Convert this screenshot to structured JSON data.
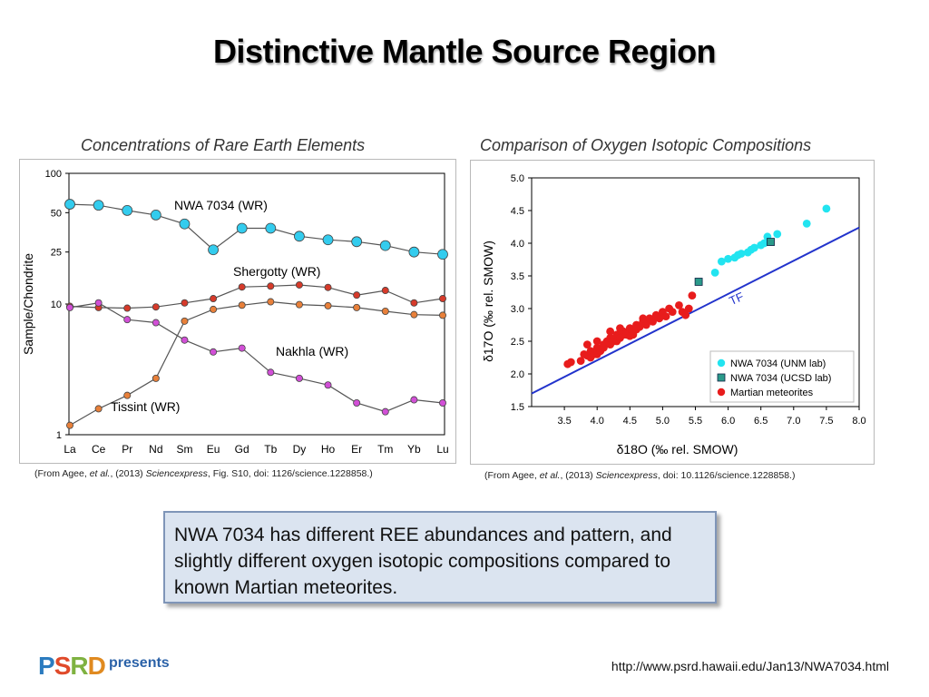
{
  "slide_title": "Distinctive Mantle Source Region",
  "left_panel": {
    "title": "Concentrations of Rare Earth Elements",
    "caption_prefix": "(From Agee, ",
    "caption_etal": "et al.",
    "caption_mid": ", (2013) ",
    "caption_journal": "Sciencexpress",
    "caption_suffix": ", Fig. S10, doi: 1126/science.1228858.)"
  },
  "right_panel": {
    "title": "Comparison of Oxygen Isotopic Compositions",
    "caption_prefix": "(From Agee, ",
    "caption_etal": "et al.",
    "caption_mid": ", (2013) ",
    "caption_journal": "Sciencexpress",
    "caption_suffix": ", doi: 10.1126/science.1228858.)"
  },
  "note_text": "NWA 7034 has different REE abundances and pattern, and slightly different oxygen isotopic compositions compared to known Martian meteorites.",
  "logo": {
    "main_p": "P",
    "main_s": "S",
    "main_r": "R",
    "main_d": "D",
    "sub": "presents"
  },
  "url": "http://www.psrd.hawaii.edu/Jan13/NWA7034.html",
  "chart_data": [
    {
      "type": "line",
      "title": "Concentrations of Rare Earth Elements",
      "ylabel": "Sample/Chondrite",
      "xlabel": "",
      "yscale": "log",
      "ylim": [
        1,
        100
      ],
      "yticks": [
        100,
        50,
        25,
        10,
        1
      ],
      "categories": [
        "La",
        "Ce",
        "Pr",
        "Nd",
        "Sm",
        "Eu",
        "Gd",
        "Tb",
        "Dy",
        "Ho",
        "Er",
        "Tm",
        "Yb",
        "Lu"
      ],
      "series": [
        {
          "name": "NWA 7034 (WR)",
          "color": "#33ccee",
          "values": [
            58,
            57,
            52,
            48,
            41,
            26,
            38,
            38,
            33,
            31,
            30,
            28,
            25,
            24
          ]
        },
        {
          "name": "Shergotty (WR)",
          "color": "#d63a2a",
          "values": [
            9.6,
            9.4,
            9.3,
            9.5,
            10.2,
            11.0,
            13.5,
            13.7,
            14.0,
            13.4,
            11.7,
            12.7,
            10.2,
            11.0
          ]
        },
        {
          "name": "Nakhla (WR)",
          "color": "#d14fd6",
          "values": [
            9.4,
            10.2,
            7.6,
            7.2,
            5.3,
            4.3,
            4.6,
            3.0,
            2.7,
            2.4,
            1.75,
            1.5,
            1.85,
            1.75
          ]
        },
        {
          "name": "Tissint (WR)",
          "color": "#e8803a",
          "values": [
            1.18,
            1.58,
            2.0,
            2.7,
            7.4,
            9.1,
            9.8,
            10.4,
            9.9,
            9.7,
            9.4,
            8.8,
            8.3,
            8.2
          ]
        }
      ]
    },
    {
      "type": "scatter",
      "title": "Comparison of Oxygen Isotopic Compositions",
      "xlabel": "δ18O (‰ rel. SMOW)",
      "ylabel": "δ17O (‰ rel. SMOW)",
      "xlim": [
        3.0,
        8.0
      ],
      "ylim": [
        1.5,
        5.0
      ],
      "xticks": [
        3.5,
        4.0,
        4.5,
        5.0,
        5.5,
        6.0,
        6.5,
        7.0,
        7.5,
        8.0
      ],
      "yticks": [
        1.5,
        2.0,
        2.5,
        3.0,
        3.5,
        4.0,
        4.5,
        5.0
      ],
      "legend_position": "bottom-right",
      "tf_line": {
        "label": "TF",
        "color": "#2233cc",
        "x": [
          3.0,
          8.0
        ],
        "y": [
          1.7,
          4.24
        ]
      },
      "series": [
        {
          "name": "NWA 7034 (UNM lab)",
          "color": "#22e4f0",
          "marker": "circle",
          "x": [
            5.8,
            5.9,
            6.0,
            6.1,
            6.15,
            6.2,
            6.3,
            6.35,
            6.4,
            6.5,
            6.55,
            6.6,
            6.75,
            7.2,
            7.5
          ],
          "y": [
            3.55,
            3.72,
            3.76,
            3.78,
            3.82,
            3.84,
            3.86,
            3.9,
            3.93,
            3.97,
            4.0,
            4.1,
            4.14,
            4.3,
            4.53
          ]
        },
        {
          "name": "NWA 7034 (UCSD lab)",
          "color": "#2a9a8a",
          "marker": "square",
          "x": [
            5.55,
            6.65
          ],
          "y": [
            3.41,
            4.02
          ]
        },
        {
          "name": "Martian meteorites",
          "color": "#e81c1c",
          "marker": "circle",
          "x": [
            3.55,
            3.6,
            3.75,
            3.8,
            3.85,
            3.9,
            3.9,
            3.95,
            4.0,
            4.0,
            4.05,
            4.1,
            4.1,
            4.15,
            4.2,
            4.2,
            4.25,
            4.3,
            4.3,
            4.35,
            4.4,
            4.4,
            4.45,
            4.5,
            4.5,
            4.55,
            4.6,
            4.6,
            4.65,
            4.7,
            4.75,
            4.8,
            4.85,
            4.9,
            4.95,
            5.0,
            5.05,
            5.1,
            5.15,
            5.25,
            5.3,
            5.35,
            5.4,
            5.45,
            4.0,
            4.2,
            4.35,
            4.55,
            3.85,
            4.7
          ],
          "y": [
            2.15,
            2.18,
            2.2,
            2.3,
            2.28,
            2.35,
            2.25,
            2.3,
            2.4,
            2.3,
            2.35,
            2.45,
            2.4,
            2.5,
            2.45,
            2.55,
            2.5,
            2.6,
            2.5,
            2.55,
            2.6,
            2.65,
            2.6,
            2.7,
            2.58,
            2.65,
            2.75,
            2.68,
            2.72,
            2.8,
            2.75,
            2.85,
            2.8,
            2.9,
            2.85,
            2.95,
            2.88,
            3.0,
            2.95,
            3.05,
            2.95,
            2.9,
            3.0,
            3.2,
            2.5,
            2.65,
            2.7,
            2.6,
            2.45,
            2.85
          ]
        }
      ]
    }
  ]
}
